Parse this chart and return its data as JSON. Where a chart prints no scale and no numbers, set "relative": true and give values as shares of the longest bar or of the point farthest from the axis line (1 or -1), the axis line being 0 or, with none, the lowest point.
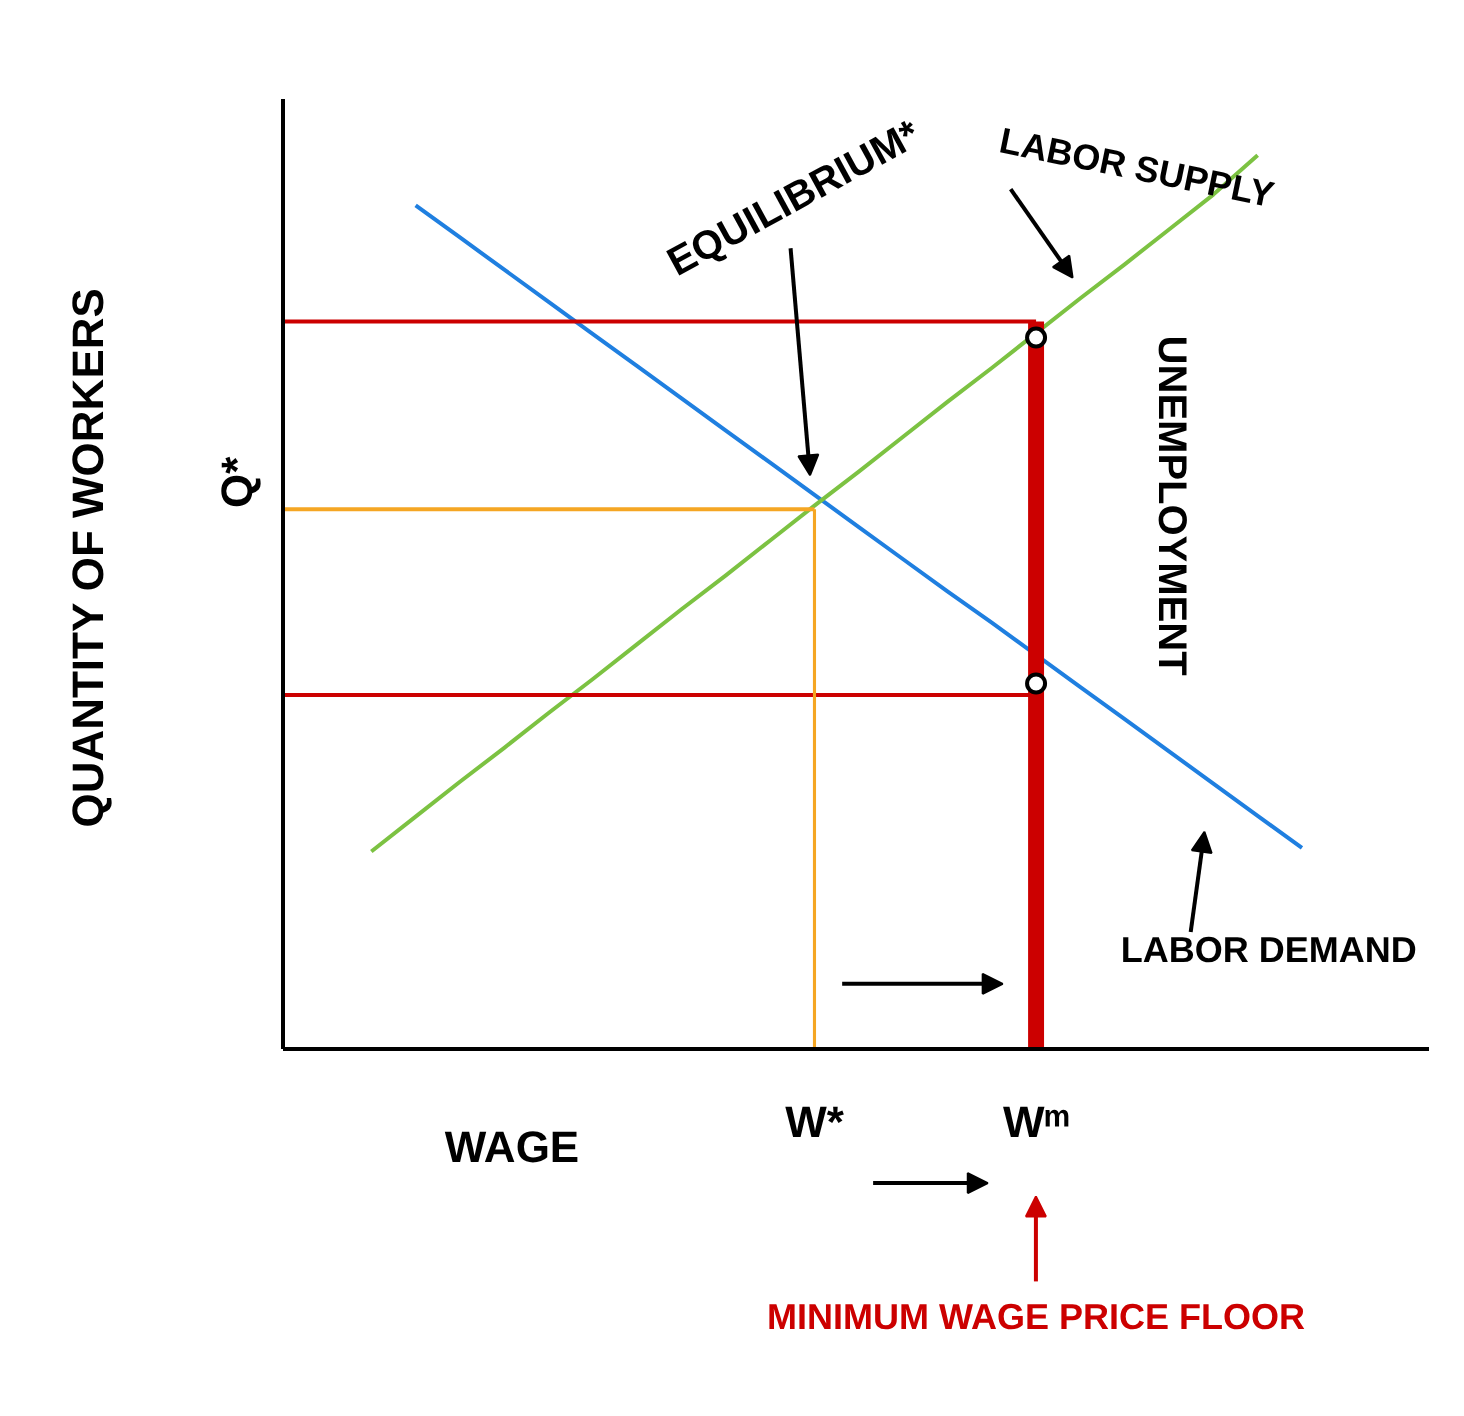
{
  "chart_data": {
    "type": "line",
    "relative": true,
    "tick_labels": "x",
    "grid": false,
    "xlabel": "WAGE",
    "ylabel": "QUANTITY OF WORKERS",
    "categories": [
      null,
      null,
      null,
      null,
      null,
      null,
      null,
      null,
      null,
      null,
      null,
      null,
      "W*",
      null,
      null,
      null,
      null,
      "Wᵐ",
      null,
      null,
      null,
      null,
      null,
      null,
      null,
      null
    ],
    "series": [
      {
        "color": "#1f7fe0",
        "values": [
          null,
          null,
          null,
          0.944,
          0.908,
          0.872,
          0.836,
          0.8,
          0.764,
          0.728,
          0.692,
          0.656,
          0.62,
          0.584,
          0.548,
          0.512,
          0.477,
          0.441,
          0.405,
          0.369,
          0.333,
          0.297,
          0.261,
          0.225,
          null,
          null
        ]
      },
      {
        "color": "#7cc242",
        "values": [
          null,
          null,
          0.221,
          0.26,
          0.299,
          0.337,
          0.376,
          0.414,
          0.453,
          0.492,
          0.53,
          0.569,
          0.608,
          0.646,
          0.685,
          0.724,
          0.762,
          0.801,
          0.84,
          0.878,
          0.917,
          0.956,
          1.0,
          null,
          null,
          null
        ]
      },
      {
        "color": "#f5a623",
        "values": [
          0.604,
          0.604,
          0.604,
          0.604,
          0.604,
          0.604,
          0.604,
          0.604,
          0.604,
          0.604,
          0.604,
          0.604,
          0.604,
          null,
          null,
          null,
          null,
          null,
          null,
          null,
          null,
          null,
          null,
          null,
          null,
          null
        ]
      },
      {
        "color": "#cc0000",
        "values": [
          0.814,
          0.814,
          0.814,
          0.814,
          0.814,
          0.814,
          0.814,
          0.814,
          0.814,
          0.814,
          0.814,
          0.814,
          0.814,
          0.814,
          0.814,
          0.814,
          0.814,
          0.814,
          null,
          null,
          null,
          null,
          null,
          null,
          null,
          null
        ]
      },
      {
        "color": "#cc0000",
        "values": [
          0.396,
          0.396,
          0.396,
          0.396,
          0.396,
          0.396,
          0.396,
          0.396,
          0.396,
          0.396,
          0.396,
          0.396,
          0.396,
          0.396,
          0.396,
          0.396,
          0.396,
          0.396,
          null,
          null,
          null,
          null,
          null,
          null,
          null,
          null
        ]
      },
      {
        "type": "bar",
        "color": "#cc0000",
        "values": [
          null,
          null,
          null,
          null,
          null,
          null,
          null,
          null,
          null,
          null,
          null,
          null,
          null,
          null,
          null,
          null,
          null,
          0.814,
          null,
          null,
          null,
          null,
          null,
          null,
          null,
          null
        ]
      },
      {
        "type": "bar",
        "color": "#f5a623",
        "values": [
          null,
          null,
          null,
          null,
          null,
          null,
          null,
          null,
          null,
          null,
          null,
          null,
          0.604,
          null,
          null,
          null,
          null,
          null,
          null,
          null,
          null,
          null,
          null,
          null,
          null,
          null
        ]
      },
      {
        "type": "scatter",
        "marker": "circle",
        "color": "#000000",
        "values": [
          null,
          null,
          null,
          null,
          null,
          null,
          null,
          null,
          null,
          null,
          null,
          null,
          null,
          null,
          null,
          null,
          null,
          0.796,
          null,
          null,
          null,
          null,
          null,
          null,
          null,
          null
        ]
      },
      {
        "type": "scatter",
        "marker": "circle",
        "color": "#000000",
        "values": [
          null,
          null,
          null,
          null,
          null,
          null,
          null,
          null,
          null,
          null,
          null,
          null,
          null,
          null,
          null,
          null,
          null,
          0.409,
          null,
          null,
          null,
          null,
          null,
          null,
          null,
          null
        ]
      }
    ],
    "annotations": [
      "EQUILIBRIUM*",
      "LABOR SUPPLY",
      "UNEMPLOYMENT",
      "LABOR DEMAND",
      "Q*",
      "MINIMUM WAGE PRICE FLOOR"
    ]
  }
}
